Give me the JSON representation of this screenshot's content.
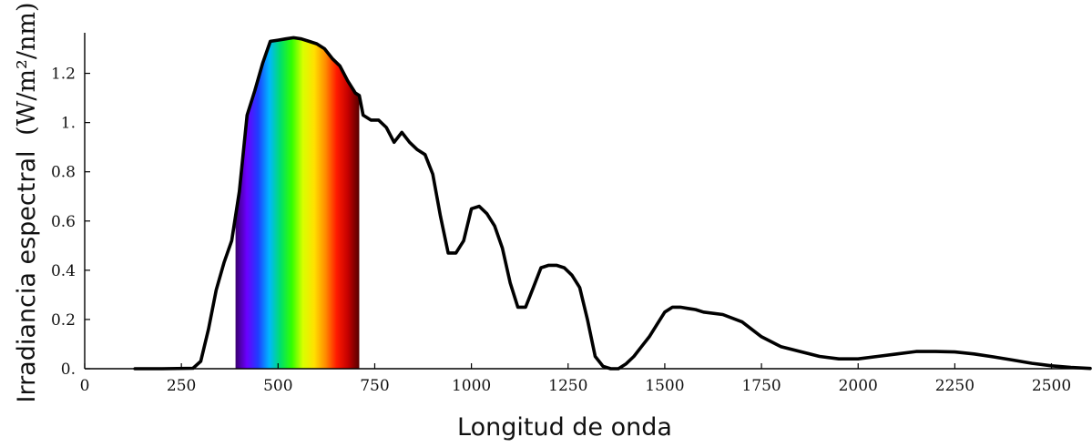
{
  "chart_data": {
    "type": "line",
    "title": "",
    "xlabel": "Longitud de onda",
    "ylabel": "Irradiancia espectral",
    "ylabel_unit": "(W/m²/nm)",
    "xlim": [
      0,
      2600
    ],
    "ylim": [
      0,
      1.35
    ],
    "x_ticks": [
      0,
      250,
      500,
      750,
      1000,
      1250,
      1500,
      1750,
      2000,
      2250,
      2500
    ],
    "x_tick_labels": [
      "0",
      "250",
      "500",
      "750",
      "1000",
      "1250",
      "1500",
      "1750",
      "2000",
      "2250",
      "2500"
    ],
    "y_ticks": [
      0,
      0.2,
      0.4,
      0.6,
      0.8,
      1.0,
      1.2
    ],
    "y_tick_labels": [
      "0.",
      "0.2",
      "0.4",
      "0.6",
      "0.8",
      "1.",
      "1.2"
    ],
    "grid": false,
    "visible_spectrum_band": {
      "range": [
        390,
        710
      ],
      "colors": [
        "#3a006f",
        "#6a00ff",
        "#1f3dff",
        "#00b7ff",
        "#00e06a",
        "#33ff00",
        "#d8ff00",
        "#ffe000",
        "#ff8c00",
        "#ff1a00",
        "#c40000",
        "#560000"
      ]
    },
    "series": [
      {
        "color": "#000000",
        "x": [
          130,
          200,
          280,
          300,
          320,
          340,
          360,
          380,
          400,
          420,
          440,
          460,
          480,
          500,
          520,
          540,
          560,
          580,
          600,
          620,
          640,
          660,
          680,
          700,
          710,
          720,
          740,
          760,
          780,
          800,
          820,
          840,
          860,
          880,
          900,
          920,
          940,
          960,
          980,
          1000,
          1020,
          1040,
          1060,
          1080,
          1100,
          1120,
          1140,
          1160,
          1180,
          1200,
          1220,
          1240,
          1260,
          1280,
          1300,
          1320,
          1340,
          1360,
          1380,
          1400,
          1420,
          1440,
          1460,
          1480,
          1500,
          1520,
          1540,
          1560,
          1580,
          1600,
          1650,
          1700,
          1750,
          1800,
          1850,
          1900,
          1950,
          2000,
          2050,
          2100,
          2150,
          2200,
          2250,
          2300,
          2350,
          2400,
          2450,
          2500,
          2550,
          2600
        ],
        "values": [
          0.0,
          0.0,
          0.002,
          0.03,
          0.16,
          0.32,
          0.43,
          0.52,
          0.72,
          1.03,
          1.13,
          1.24,
          1.33,
          1.335,
          1.34,
          1.345,
          1.34,
          1.33,
          1.32,
          1.3,
          1.26,
          1.23,
          1.17,
          1.12,
          1.11,
          1.03,
          1.01,
          1.01,
          0.98,
          0.92,
          0.96,
          0.92,
          0.89,
          0.87,
          0.79,
          0.62,
          0.47,
          0.47,
          0.52,
          0.65,
          0.66,
          0.63,
          0.58,
          0.49,
          0.35,
          0.25,
          0.25,
          0.33,
          0.41,
          0.42,
          0.42,
          0.41,
          0.38,
          0.33,
          0.2,
          0.05,
          0.01,
          0.0,
          0.0,
          0.02,
          0.05,
          0.09,
          0.13,
          0.18,
          0.23,
          0.25,
          0.25,
          0.245,
          0.24,
          0.23,
          0.22,
          0.19,
          0.13,
          0.09,
          0.07,
          0.05,
          0.04,
          0.04,
          0.05,
          0.06,
          0.07,
          0.07,
          0.068,
          0.06,
          0.048,
          0.035,
          0.022,
          0.012,
          0.005,
          0.001
        ]
      }
    ]
  }
}
